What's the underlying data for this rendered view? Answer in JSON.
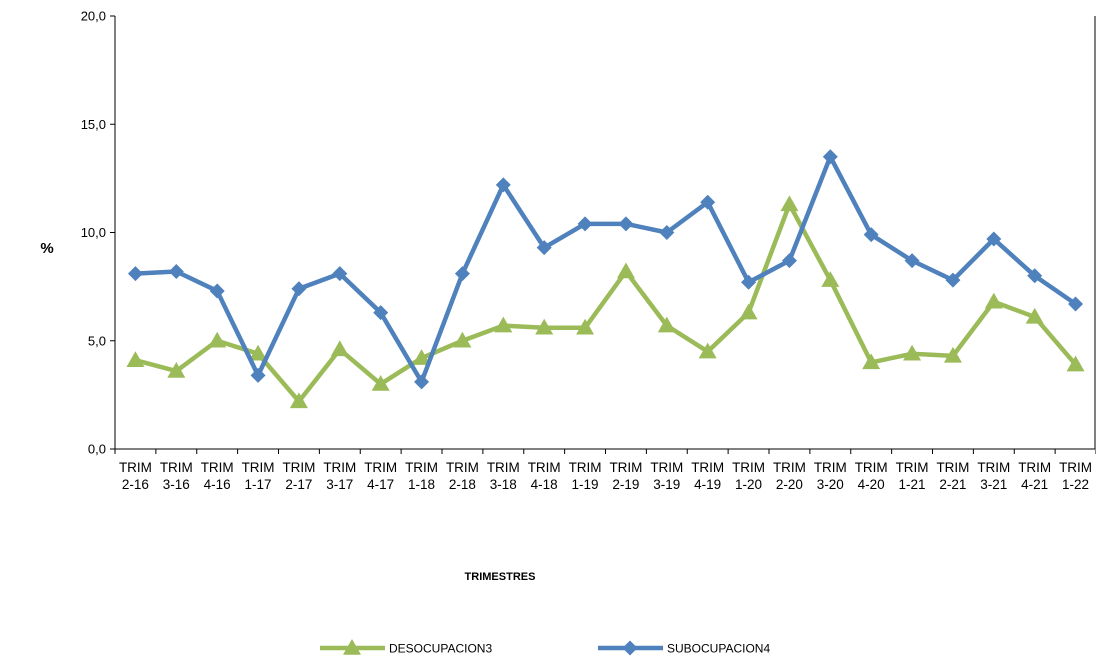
{
  "chart_data": {
    "type": "line",
    "title": "",
    "xlabel": "TRIMESTRES",
    "ylabel": "%",
    "ylim": [
      0,
      20
    ],
    "yticks": [
      "0,0",
      "5,0",
      "10,0",
      "15,0",
      "20,0"
    ],
    "categories": [
      [
        "TRIM",
        "2-16"
      ],
      [
        "TRIM",
        "3-16"
      ],
      [
        "TRIM",
        "4-16"
      ],
      [
        "TRIM",
        "1-17"
      ],
      [
        "TRIM",
        "2-17"
      ],
      [
        "TRIM",
        "3-17"
      ],
      [
        "TRIM",
        "4-17"
      ],
      [
        "TRIM",
        "1-18"
      ],
      [
        "TRIM",
        "2-18"
      ],
      [
        "TRIM",
        "3-18"
      ],
      [
        "TRIM",
        "4-18"
      ],
      [
        "TRIM",
        "1-19"
      ],
      [
        "TRIM",
        "2-19"
      ],
      [
        "TRIM",
        "3-19"
      ],
      [
        "TRIM",
        "4-19"
      ],
      [
        "TRIM",
        "1-20"
      ],
      [
        "TRIM",
        "2-20"
      ],
      [
        "TRIM",
        "3-20"
      ],
      [
        "TRIM",
        "4-20"
      ],
      [
        "TRIM",
        "1-21"
      ],
      [
        "TRIM",
        "2-21"
      ],
      [
        "TRIM",
        "3-21"
      ],
      [
        "TRIM",
        "4-21"
      ],
      [
        "TRIM",
        "1-22"
      ]
    ],
    "series": [
      {
        "name": "DESOCUPACION3",
        "color": "#9BBB59",
        "marker": "triangle",
        "values": [
          4.1,
          3.6,
          5.0,
          4.4,
          2.2,
          4.6,
          3.0,
          4.2,
          5.0,
          5.7,
          5.6,
          5.6,
          8.2,
          5.7,
          4.5,
          6.3,
          11.3,
          7.8,
          4.0,
          4.4,
          4.3,
          6.8,
          6.1,
          3.9
        ]
      },
      {
        "name": "SUBOCUPACION4",
        "color": "#4F81BD",
        "marker": "diamond",
        "values": [
          8.1,
          8.2,
          7.3,
          3.4,
          7.4,
          8.1,
          6.3,
          3.1,
          8.1,
          12.2,
          9.3,
          10.4,
          10.4,
          10.0,
          11.4,
          7.7,
          8.7,
          13.5,
          9.9,
          8.7,
          7.8,
          9.7,
          8.0,
          6.7
        ]
      }
    ],
    "grid": false,
    "legend_position": "bottom"
  }
}
